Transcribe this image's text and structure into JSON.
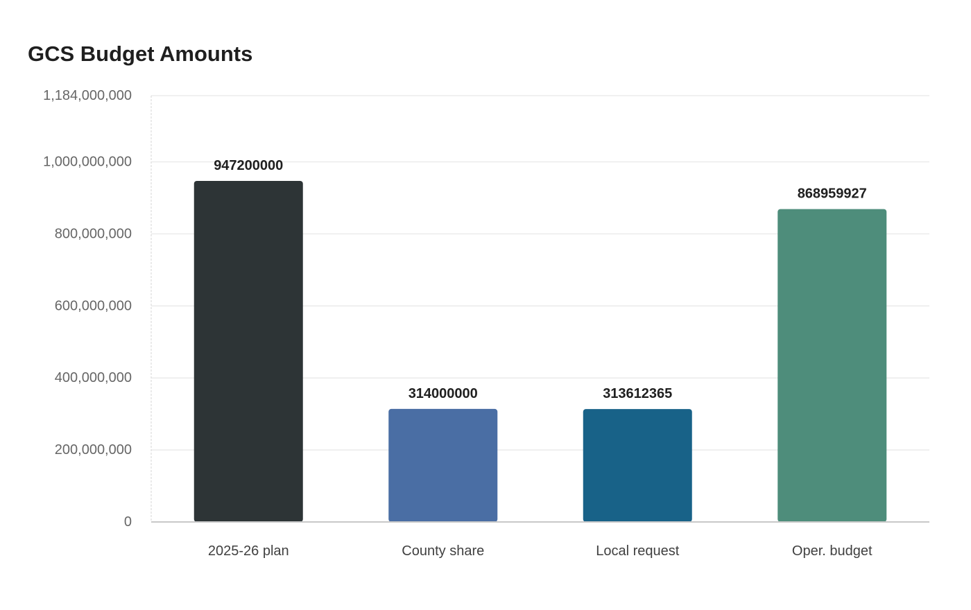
{
  "chart_data": {
    "type": "bar",
    "title": "GCS Budget Amounts",
    "xlabel": "",
    "ylabel": "",
    "categories": [
      "2025-26 plan",
      "County share",
      "Local request",
      "Oper. budget"
    ],
    "values": [
      947200000,
      314000000,
      313612365,
      868959927
    ],
    "value_labels": [
      "947200000",
      "314000000",
      "313612365",
      "868959927"
    ],
    "colors": [
      "#2d3436",
      "#4a6ea4",
      "#186288",
      "#4e8d7b"
    ],
    "ylim": [
      0,
      1184000000
    ],
    "yticks": [
      0,
      200000000,
      400000000,
      600000000,
      800000000,
      1000000000,
      1184000000
    ],
    "ytick_labels": [
      "0",
      "200,000,000",
      "400,000,000",
      "600,000,000",
      "800,000,000",
      "1,000,000,000",
      "1,184,000,000"
    ],
    "grid": true,
    "legend": "none"
  }
}
